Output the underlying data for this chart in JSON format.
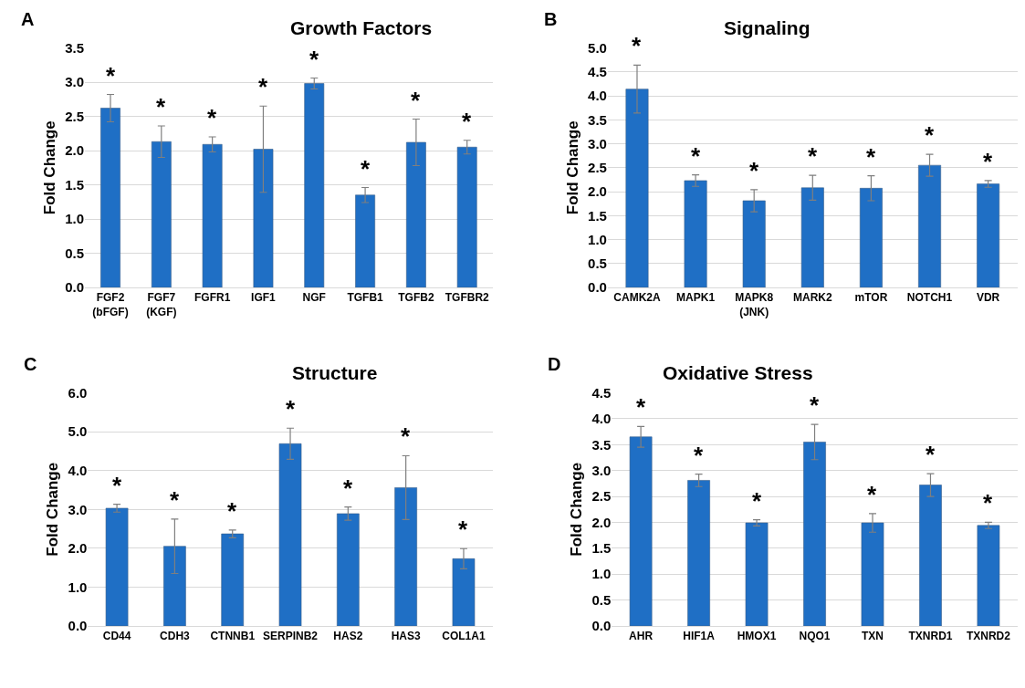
{
  "chart_data": [
    {
      "type": "bar",
      "title": "Growth Factors",
      "ylabel": "Fold Change",
      "color": "#1f6fc5",
      "grid": "y",
      "categories": [
        "FGF2 (bFGF)",
        "FGF7 (KGF)",
        "FGFR1",
        "IGF1",
        "NGF",
        "TGFB1",
        "TGFB2",
        "TGFBR2"
      ],
      "values": [
        2.62,
        2.13,
        2.09,
        2.02,
        2.98,
        1.35,
        2.12,
        2.05
      ],
      "errors": [
        0.2,
        0.23,
        0.11,
        0.63,
        0.08,
        0.11,
        0.34,
        0.1
      ],
      "ylim": [
        0,
        3.5
      ],
      "yticks": [
        {
          "value": 0,
          "label": "0.0"
        },
        {
          "value": 0.5,
          "label": "0.5"
        },
        {
          "value": 1,
          "label": "1.0"
        },
        {
          "value": 1.5,
          "label": "1.5"
        },
        {
          "value": 2,
          "label": "2.0"
        },
        {
          "value": 2.5,
          "label": "2.5"
        },
        {
          "value": 3,
          "label": "3.0"
        },
        {
          "value": 3.5,
          "label": "3.5"
        }
      ],
      "annotations": [
        "A",
        "*",
        "*",
        "*",
        "*",
        "*",
        "*",
        "*",
        "*"
      ]
    },
    {
      "type": "bar",
      "title": "Signaling",
      "ylabel": "Fold Change",
      "color": "#1f6fc5",
      "grid": "y",
      "categories": [
        "CAMK2A",
        "MAPK1",
        "MAPK8 (JNK)",
        "MARK2",
        "mTOR",
        "NOTCH1",
        "VDR"
      ],
      "values": [
        4.14,
        2.23,
        1.81,
        2.08,
        2.07,
        2.55,
        2.16
      ],
      "errors": [
        0.5,
        0.12,
        0.23,
        0.26,
        0.26,
        0.23,
        0.07
      ],
      "ylim": [
        0,
        5
      ],
      "yticks": [
        {
          "value": 0,
          "label": "0.0"
        },
        {
          "value": 0.5,
          "label": "0.5"
        },
        {
          "value": 1,
          "label": "1.0"
        },
        {
          "value": 1.5,
          "label": "1.5"
        },
        {
          "value": 2,
          "label": "2.0"
        },
        {
          "value": 2.5,
          "label": "2.5"
        },
        {
          "value": 3,
          "label": "3.0"
        },
        {
          "value": 3.5,
          "label": "3.5"
        },
        {
          "value": 4,
          "label": "4.0"
        },
        {
          "value": 4.5,
          "label": "4.5"
        },
        {
          "value": 5,
          "label": "5.0"
        }
      ],
      "annotations": [
        "B",
        "*",
        "*",
        "*",
        "*",
        "*",
        "*",
        "*"
      ]
    },
    {
      "type": "bar",
      "title": "Structure",
      "ylabel": "Fold Change",
      "color": "#1f6fc5",
      "grid": "y",
      "categories": [
        "CD44",
        "CDH3",
        "CTNNB1",
        "SERPINB2",
        "HAS2",
        "HAS3",
        "COL1A1"
      ],
      "values": [
        3.03,
        2.05,
        2.37,
        4.69,
        2.89,
        3.56,
        1.73
      ],
      "errors": [
        0.1,
        0.7,
        0.1,
        0.4,
        0.17,
        0.82,
        0.26
      ],
      "ylim": [
        0,
        6
      ],
      "yticks": [
        {
          "value": 0,
          "label": "0.0"
        },
        {
          "value": 1,
          "label": "1.0"
        },
        {
          "value": 2,
          "label": "2.0"
        },
        {
          "value": 3,
          "label": "3.0"
        },
        {
          "value": 4,
          "label": "4.0"
        },
        {
          "value": 5,
          "label": "5.0"
        },
        {
          "value": 6,
          "label": "6.0"
        }
      ],
      "annotations": [
        "C",
        "*",
        "*",
        "*",
        "*",
        "*",
        "*",
        "*"
      ]
    },
    {
      "type": "bar",
      "title": "Oxidative Stress",
      "ylabel": "Fold Change",
      "color": "#1f6fc5",
      "grid": "y",
      "categories": [
        "AHR",
        "HIF1A",
        "HMOX1",
        "NQO1",
        "TXN",
        "TXNRD1",
        "TXNRD2"
      ],
      "values": [
        3.65,
        2.81,
        1.99,
        3.55,
        1.99,
        2.72,
        1.94
      ],
      "errors": [
        0.2,
        0.12,
        0.06,
        0.34,
        0.18,
        0.22,
        0.06
      ],
      "ylim": [
        0,
        4.5
      ],
      "yticks": [
        {
          "value": 0,
          "label": "0.0"
        },
        {
          "value": 0.5,
          "label": "0.5"
        },
        {
          "value": 1,
          "label": "1.0"
        },
        {
          "value": 1.5,
          "label": "1.5"
        },
        {
          "value": 2,
          "label": "2.0"
        },
        {
          "value": 2.5,
          "label": "2.5"
        },
        {
          "value": 3,
          "label": "3.0"
        },
        {
          "value": 3.5,
          "label": "3.5"
        },
        {
          "value": 4,
          "label": "4.0"
        },
        {
          "value": 4.5,
          "label": "4.5"
        }
      ],
      "annotations": [
        "D",
        "*",
        "*",
        "*",
        "*",
        "*",
        "*",
        "*"
      ]
    }
  ]
}
